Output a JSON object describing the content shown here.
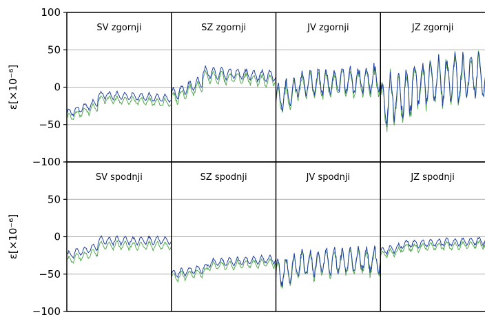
{
  "chart_data": {
    "type": "line",
    "layout": "2 rows x 4 columns, shared axes",
    "ylim": [
      -100,
      100
    ],
    "yticks": [
      -100,
      -50,
      0,
      50,
      100
    ],
    "ytick_labels": [
      "−100",
      "−50",
      "0",
      "50",
      "100"
    ],
    "ylabel": "ε[×10⁻⁶]",
    "grid": "horizontal",
    "colors": {
      "series_a": "#1f3f9f",
      "series_b": "#55a84f"
    },
    "panels": [
      {
        "title": "SV zgornji",
        "row": 0,
        "col": 0,
        "base_start": -35,
        "base_end": -15,
        "step_at": 0.3,
        "step_to": -10,
        "amp": 6,
        "offset_b": -6
      },
      {
        "title": "SZ zgornji",
        "row": 0,
        "col": 1,
        "base_start": -10,
        "base_end": 15,
        "step_at": 0.3,
        "step_to": 20,
        "amp": 9,
        "offset_b": -6
      },
      {
        "title": "JV zgornji",
        "row": 0,
        "col": 2,
        "base_start": -15,
        "base_end": 12,
        "step_at": 0.2,
        "step_to": 5,
        "amp": 20,
        "offset_b": -4
      },
      {
        "title": "JZ zgornji",
        "row": 0,
        "col": 3,
        "base_start": -20,
        "base_end": 15,
        "step_at": 0.3,
        "step_to": 5,
        "amp": 35,
        "offset_b": -3
      },
      {
        "title": "SV spodnji",
        "row": 1,
        "col": 0,
        "base_start": -25,
        "base_end": -5,
        "step_at": 0.3,
        "step_to": -5,
        "amp": 6,
        "offset_b": -7
      },
      {
        "title": "SZ spodnji",
        "row": 1,
        "col": 1,
        "base_start": -50,
        "base_end": -30,
        "step_at": 0.35,
        "step_to": -35,
        "amp": 6,
        "offset_b": -5
      },
      {
        "title": "JV spodnji",
        "row": 1,
        "col": 2,
        "base_start": -50,
        "base_end": -30,
        "step_at": 0.2,
        "step_to": -35,
        "amp": 20,
        "offset_b": -3
      },
      {
        "title": "JZ spodnji",
        "row": 1,
        "col": 3,
        "base_start": -20,
        "base_end": -5,
        "step_at": 0.2,
        "step_to": -10,
        "amp": 6,
        "offset_b": -5
      }
    ],
    "cycles_per_panel": 13
  }
}
